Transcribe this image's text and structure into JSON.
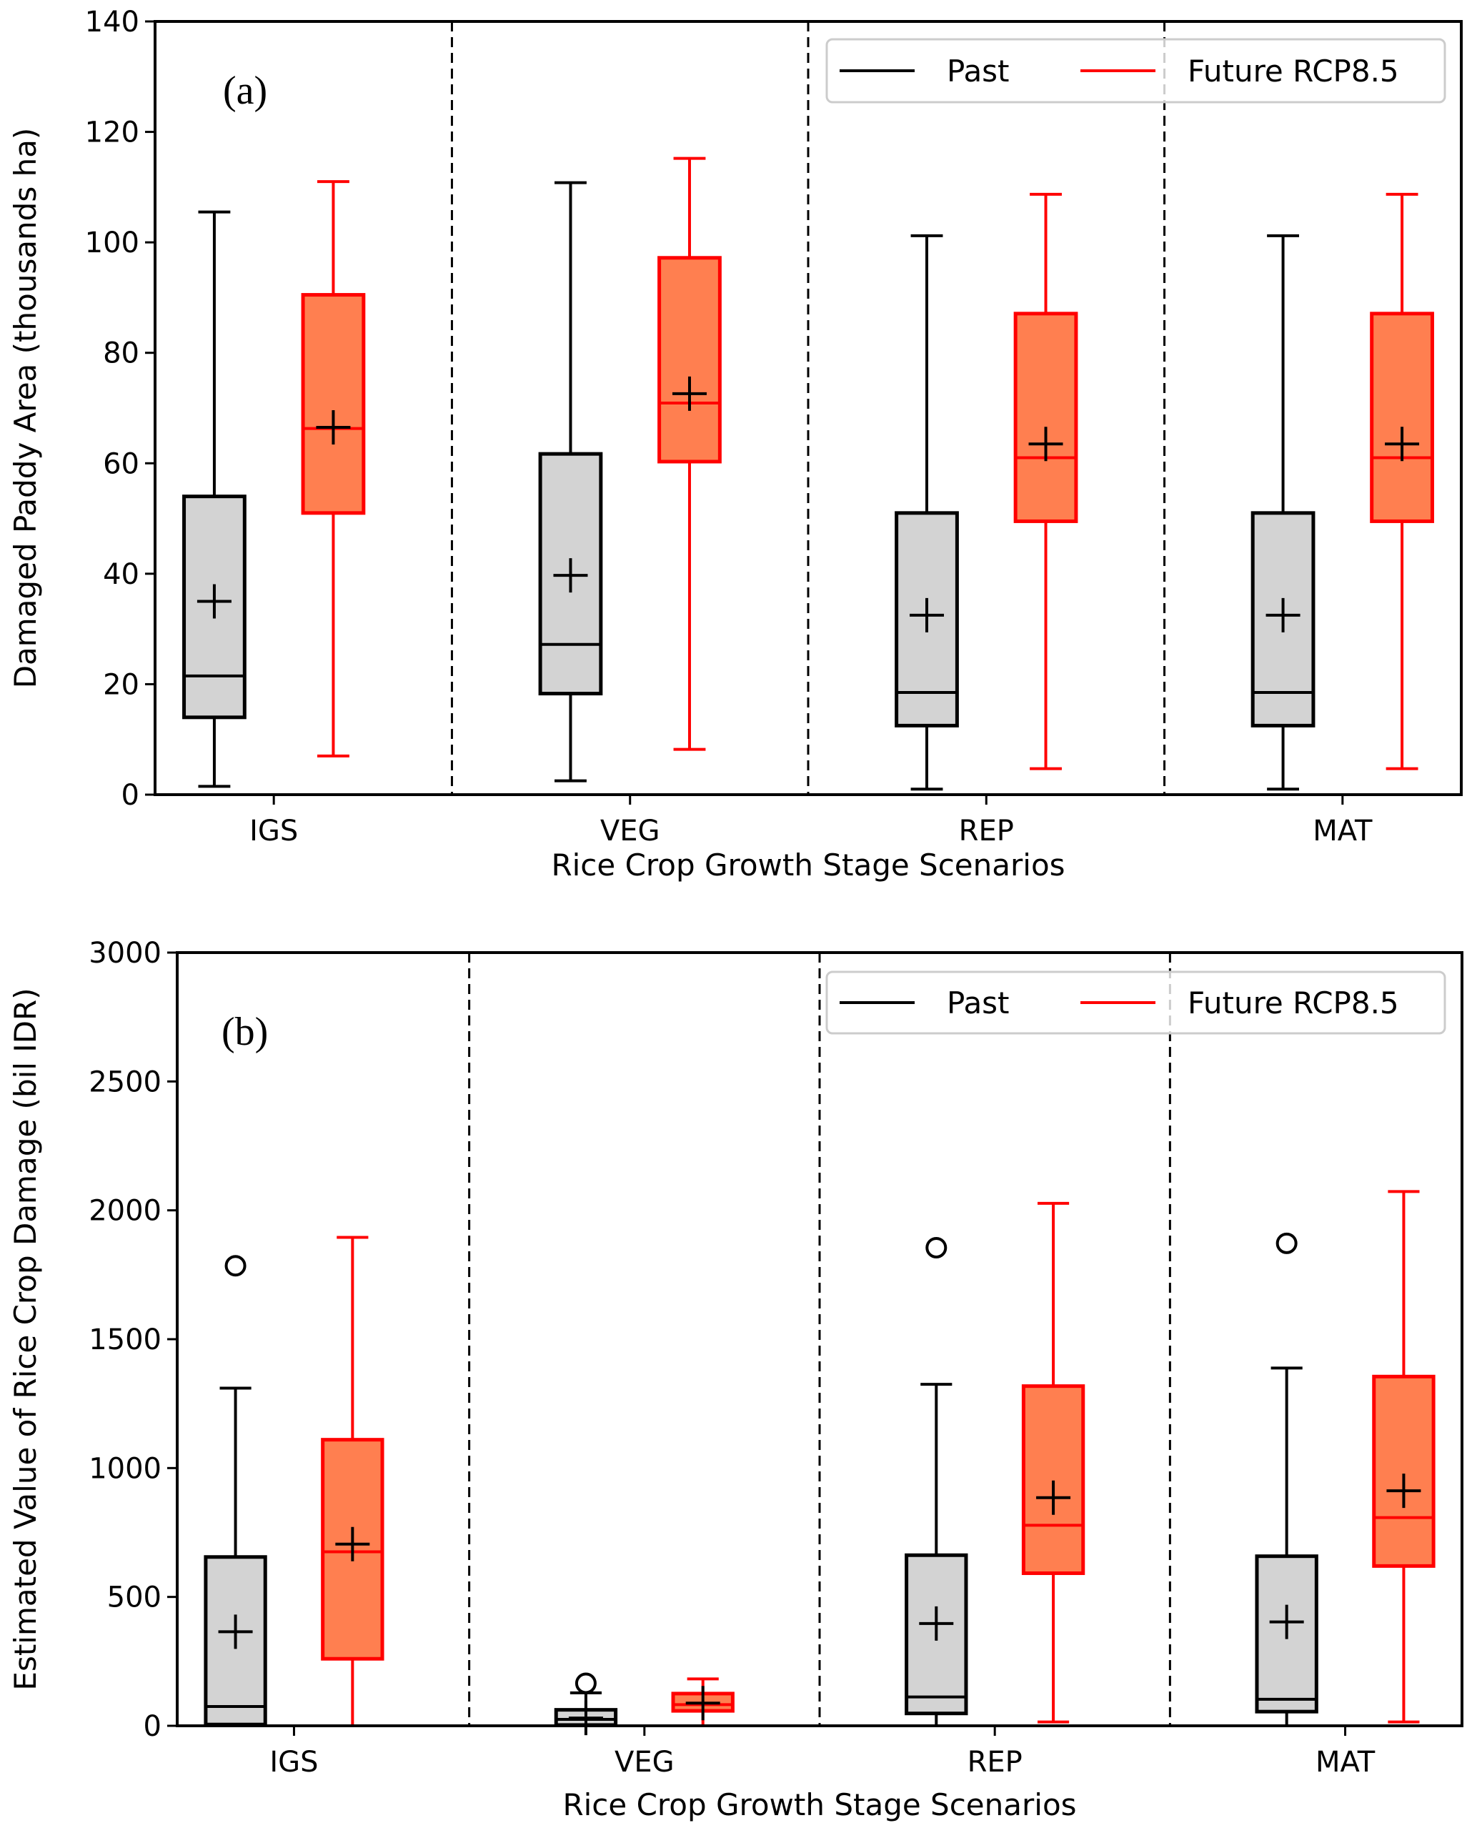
{
  "chart_data": [
    {
      "type": "boxplot",
      "panel_label": "(a)",
      "title": "",
      "xlabel": "Rice Crop Growth Stage Scenarios",
      "ylabel": "Damaged Paddy Area (thousands ha)",
      "ylim": [
        0,
        140
      ],
      "yticks": [
        0,
        20,
        40,
        60,
        80,
        100,
        120,
        140
      ],
      "categories": [
        "IGS",
        "VEG",
        "REP",
        "MAT"
      ],
      "grid": false,
      "legend_position": "top-right",
      "separators": "dashed vertical lines between categories",
      "series": [
        {
          "name": "Past",
          "line_color": "#000000",
          "fill_color": "#d3d3d3",
          "boxes": [
            {
              "category": "IGS",
              "whisker_low": 1.5,
              "q1": 14,
              "median": 21.5,
              "mean": 35,
              "q3": 54,
              "whisker_high": 105.5,
              "outliers": []
            },
            {
              "category": "VEG",
              "whisker_low": 2.5,
              "q1": 18.3,
              "median": 27.2,
              "mean": 39.7,
              "q3": 61.7,
              "whisker_high": 110.8,
              "outliers": []
            },
            {
              "category": "REP",
              "whisker_low": 1,
              "q1": 12.5,
              "median": 18.5,
              "mean": 32.5,
              "q3": 51,
              "whisker_high": 101.2,
              "outliers": []
            },
            {
              "category": "MAT",
              "whisker_low": 1,
              "q1": 12.5,
              "median": 18.5,
              "mean": 32.5,
              "q3": 51,
              "whisker_high": 101.2,
              "outliers": []
            }
          ]
        },
        {
          "name": "Future RCP8.5",
          "line_color": "#ff0000",
          "fill_color": "#ff7f50",
          "boxes": [
            {
              "category": "IGS",
              "whisker_low": 7,
              "q1": 51,
              "median": 66.3,
              "mean": 66.5,
              "q3": 90.5,
              "whisker_high": 111,
              "outliers": []
            },
            {
              "category": "VEG",
              "whisker_low": 8.2,
              "q1": 60.3,
              "median": 70.9,
              "mean": 72.6,
              "q3": 97.2,
              "whisker_high": 115.2,
              "outliers": []
            },
            {
              "category": "REP",
              "whisker_low": 4.7,
              "q1": 49.5,
              "median": 61,
              "mean": 63.5,
              "q3": 87.1,
              "whisker_high": 108.7,
              "outliers": []
            },
            {
              "category": "MAT",
              "whisker_low": 4.7,
              "q1": 49.5,
              "median": 61,
              "mean": 63.5,
              "q3": 87.1,
              "whisker_high": 108.7,
              "outliers": []
            }
          ]
        }
      ]
    },
    {
      "type": "boxplot",
      "panel_label": "(b)",
      "title": "",
      "xlabel": "Rice Crop Growth Stage Scenarios",
      "ylabel": "Estimated Value of Rice Crop Damage (bil IDR)",
      "ylim": [
        0,
        3000
      ],
      "yticks": [
        0,
        500,
        1000,
        1500,
        2000,
        2500,
        3000
      ],
      "categories": [
        "IGS",
        "VEG",
        "REP",
        "MAT"
      ],
      "grid": false,
      "legend_position": "top-right",
      "separators": "dashed vertical lines between categories",
      "series": [
        {
          "name": "Past",
          "line_color": "#000000",
          "fill_color": "#d3d3d3",
          "boxes": [
            {
              "category": "IGS",
              "whisker_low": 0,
              "q1": 5,
              "median": 75,
              "mean": 365,
              "q3": 655,
              "whisker_high": 1310,
              "outliers": [
                1785
              ]
            },
            {
              "category": "VEG",
              "whisker_low": 0,
              "q1": 3,
              "median": 25,
              "mean": 30,
              "q3": 62,
              "whisker_high": 128,
              "outliers": [
                165
              ]
            },
            {
              "category": "REP",
              "whisker_low": 0,
              "q1": 48,
              "median": 112,
              "mean": 397,
              "q3": 662,
              "whisker_high": 1325,
              "outliers": [
                1855
              ]
            },
            {
              "category": "MAT",
              "whisker_low": 0,
              "q1": 55,
              "median": 103,
              "mean": 403,
              "q3": 658,
              "whisker_high": 1388,
              "outliers": [
                1872
              ]
            }
          ]
        },
        {
          "name": "Future RCP8.5",
          "line_color": "#ff0000",
          "fill_color": "#ff7f50",
          "boxes": [
            {
              "category": "IGS",
              "whisker_low": 0,
              "q1": 260,
              "median": 675,
              "mean": 705,
              "q3": 1110,
              "whisker_high": 1895,
              "outliers": []
            },
            {
              "category": "VEG",
              "whisker_low": 0,
              "q1": 58,
              "median": 82,
              "mean": 88,
              "q3": 125,
              "whisker_high": 182,
              "outliers": []
            },
            {
              "category": "REP",
              "whisker_low": 15,
              "q1": 592,
              "median": 778,
              "mean": 885,
              "q3": 1318,
              "whisker_high": 2027,
              "outliers": []
            },
            {
              "category": "MAT",
              "whisker_low": 15,
              "q1": 620,
              "median": 808,
              "mean": 912,
              "q3": 1355,
              "whisker_high": 2073,
              "outliers": []
            }
          ]
        }
      ]
    }
  ]
}
